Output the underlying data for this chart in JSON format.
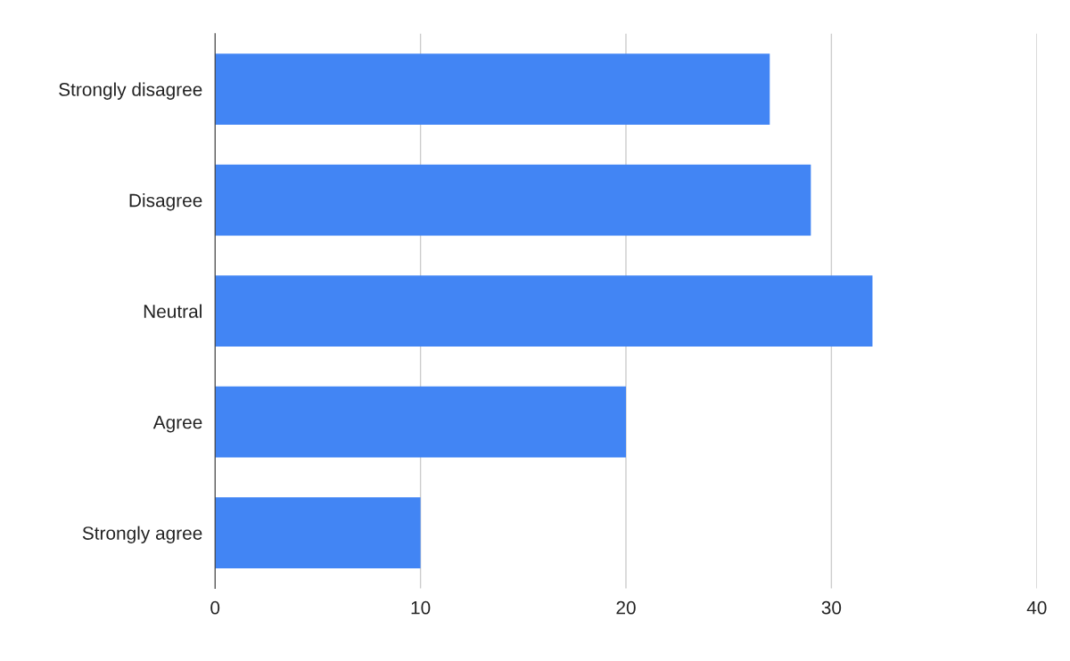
{
  "chart_data": {
    "type": "bar",
    "orientation": "horizontal",
    "categories": [
      "Strongly disagree",
      "Disagree",
      "Neutral",
      "Agree",
      "Strongly agree"
    ],
    "values": [
      27,
      29,
      32,
      20,
      10
    ],
    "color": "#4285f4",
    "xlim": [
      0,
      40
    ],
    "xticks": [
      0,
      10,
      20,
      30,
      40
    ],
    "grid": "x",
    "legend": false
  }
}
